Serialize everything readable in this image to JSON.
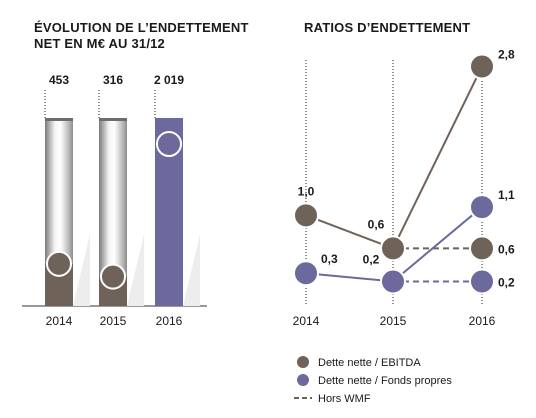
{
  "colors": {
    "brown": "#6f6259",
    "purple": "#6c6a9c",
    "grey_light": "#e8e8e8",
    "grey_dark": "#8a8a8a"
  },
  "left_title_line1": "ÉVOLUTION DE L’ENDETTEMENT",
  "left_title_line2": "NET EN M€ AU 31/12",
  "right_title": "RATIOS D’ENDETTEMENT",
  "chart_data": [
    {
      "type": "bar",
      "title": "ÉVOLUTION DE L’ENDETTEMENT NET EN M€ AU 31/12",
      "categories": [
        "2014",
        "2015",
        "2016"
      ],
      "values": [
        453,
        316,
        2019
      ],
      "value_labels": [
        "453",
        "316",
        "2 019"
      ],
      "ylim": [
        0,
        2019
      ],
      "grid": false
    },
    {
      "type": "line",
      "title": "RATIOS D’ENDETTEMENT",
      "x": [
        "2014",
        "2015",
        "2016"
      ],
      "ylim": [
        0,
        3.0
      ],
      "grid": false,
      "legend_position": "bottom",
      "series": [
        {
          "name": "Dette nette / EBITDA",
          "values": [
            1.0,
            0.6,
            2.8
          ],
          "labels": [
            "1,0",
            "0,6",
            "2,8"
          ],
          "color": "brown"
        },
        {
          "name": "Dette nette / Fonds propres",
          "values": [
            0.3,
            0.2,
            1.1
          ],
          "labels": [
            "0,3",
            "0,2",
            "1,1"
          ],
          "color": "purple"
        }
      ],
      "hors_wmf": {
        "name": "Hors WMF",
        "values": {
          "Dette nette / EBITDA": 0.6,
          "Dette nette / Fonds propres": 0.2
        },
        "labels": {
          "Dette nette / EBITDA": "0,6",
          "Dette nette / Fonds propres": "0,2"
        }
      }
    }
  ]
}
